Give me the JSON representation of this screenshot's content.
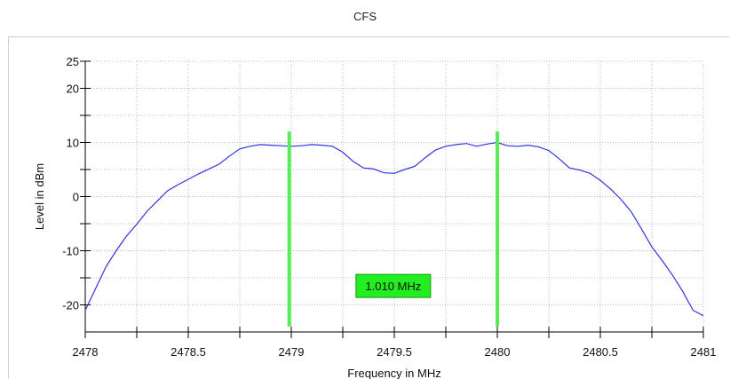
{
  "chart_data": {
    "type": "line",
    "title": "CFS",
    "xlabel": "Frequency in MHz",
    "ylabel": "Level in dBm",
    "xlim": [
      2478,
      2481
    ],
    "ylim": [
      -25,
      25
    ],
    "x_ticks": [
      "2478",
      "2478.5",
      "2479",
      "2479.5",
      "2480",
      "2480.5",
      "2481"
    ],
    "y_ticks": [
      "25",
      "20",
      "10",
      "0",
      "-10",
      "-20"
    ],
    "grid": true,
    "series": [
      {
        "color": "#3333dd",
        "x": [
          2478.0,
          2478.05,
          2478.1,
          2478.15,
          2478.2,
          2478.25,
          2478.3,
          2478.35,
          2478.4,
          2478.45,
          2478.5,
          2478.55,
          2478.6,
          2478.65,
          2478.7,
          2478.75,
          2478.8,
          2478.85,
          2478.9,
          2478.95,
          2479.0,
          2479.05,
          2479.1,
          2479.15,
          2479.2,
          2479.25,
          2479.3,
          2479.35,
          2479.4,
          2479.45,
          2479.5,
          2479.55,
          2479.6,
          2479.65,
          2479.7,
          2479.75,
          2479.8,
          2479.85,
          2479.9,
          2479.95,
          2480.0,
          2480.05,
          2480.1,
          2480.15,
          2480.2,
          2480.25,
          2480.3,
          2480.35,
          2480.4,
          2480.45,
          2480.5,
          2480.55,
          2480.6,
          2480.65,
          2480.7,
          2480.75,
          2480.8,
          2480.85,
          2480.9,
          2480.95,
          2481.0
        ],
        "y": [
          -21.0,
          -17.0,
          -13.0,
          -10.0,
          -7.3,
          -5.1,
          -2.7,
          -0.8,
          1.1,
          2.2,
          3.2,
          4.2,
          5.1,
          6.0,
          7.5,
          8.8,
          9.3,
          9.6,
          9.5,
          9.4,
          9.3,
          9.4,
          9.6,
          9.5,
          9.3,
          8.2,
          6.5,
          5.3,
          5.1,
          4.4,
          4.3,
          5.0,
          5.6,
          7.2,
          8.6,
          9.3,
          9.6,
          9.8,
          9.3,
          9.7,
          10.0,
          9.4,
          9.3,
          9.5,
          9.2,
          8.5,
          7.0,
          5.3,
          4.9,
          4.3,
          3.0,
          1.4,
          -0.5,
          -2.8,
          -6.0,
          -9.3,
          -11.8,
          -14.5,
          -17.5,
          -21.0,
          -22.0
        ]
      }
    ],
    "markers": [
      {
        "x": 2478.99,
        "color": "#55ee55"
      },
      {
        "x": 2480.0,
        "color": "#55ee55"
      }
    ],
    "annotation": {
      "text": "1.010 MHz",
      "color": "#22ee22"
    }
  }
}
